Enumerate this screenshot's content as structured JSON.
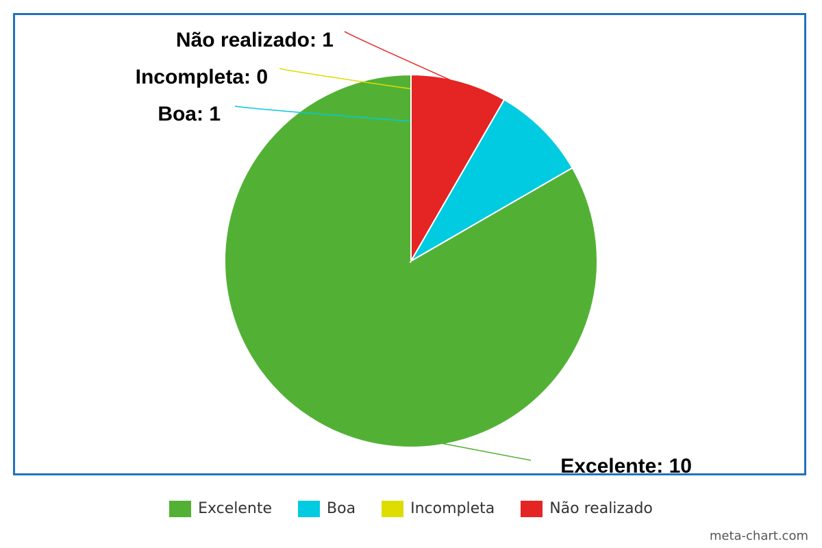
{
  "chart_data": {
    "type": "pie",
    "categories": [
      "Excelente",
      "Boa",
      "Incompleta",
      "Não realizado"
    ],
    "values": [
      10,
      1,
      0,
      1
    ],
    "colors": [
      "#52b135",
      "#00cbe0",
      "#dedd00",
      "#e52424"
    ],
    "labels": [
      "Excelente: 10",
      "Boa: 1",
      "Incompleta: 0",
      "Não realizado: 1"
    ],
    "legend_position": "bottom-center",
    "start_angle_deg": 0,
    "direction": "counterclockwise"
  },
  "watermark": "meta-chart.com"
}
